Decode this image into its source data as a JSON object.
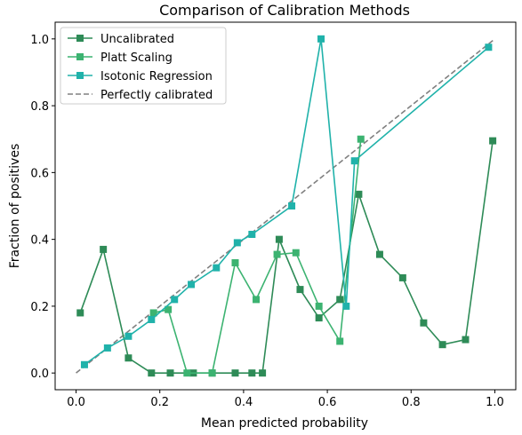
{
  "chart_data": {
    "type": "line",
    "title": "Comparison of Calibration Methods",
    "xlabel": "Mean predicted probability",
    "ylabel": "Fraction of positives",
    "xlim": [
      -0.05,
      1.05
    ],
    "ylim": [
      -0.05,
      1.05
    ],
    "xticks": [
      "0.0",
      "0.2",
      "0.4",
      "0.6",
      "0.8",
      "1.0"
    ],
    "yticks": [
      "0.0",
      "0.2",
      "0.4",
      "0.6",
      "0.8",
      "1.0"
    ],
    "grid": false,
    "legend_position": "top-left",
    "series": [
      {
        "name": "Uncalibrated",
        "color": "#2e8b57",
        "marker": "square",
        "x": [
          0.01,
          0.065,
          0.125,
          0.18,
          0.225,
          0.28,
          0.325,
          0.38,
          0.42,
          0.445,
          0.485,
          0.535,
          0.58,
          0.63,
          0.675,
          0.725,
          0.78,
          0.83,
          0.875,
          0.93,
          0.995
        ],
        "y": [
          0.18,
          0.37,
          0.045,
          0.0,
          0.0,
          0.0,
          0.0,
          0.0,
          0.0,
          0.0,
          0.4,
          0.25,
          0.165,
          0.22,
          0.535,
          0.355,
          0.285,
          0.15,
          0.085,
          0.1,
          0.695
        ]
      },
      {
        "name": "Platt Scaling",
        "color": "#3cb371",
        "marker": "square",
        "x": [
          0.185,
          0.22,
          0.265,
          0.325,
          0.38,
          0.43,
          0.48,
          0.525,
          0.58,
          0.63,
          0.68
        ],
        "y": [
          0.18,
          0.19,
          0.0,
          0.0,
          0.33,
          0.22,
          0.355,
          0.36,
          0.2,
          0.095,
          0.7
        ]
      },
      {
        "name": "Isotonic Regression",
        "color": "#20b2aa",
        "marker": "square",
        "x": [
          0.02,
          0.075,
          0.125,
          0.18,
          0.235,
          0.275,
          0.335,
          0.385,
          0.42,
          0.515,
          0.585,
          0.645,
          0.665,
          0.985
        ],
        "y": [
          0.025,
          0.075,
          0.11,
          0.16,
          0.22,
          0.265,
          0.315,
          0.39,
          0.415,
          0.5,
          1.0,
          0.2,
          0.635,
          0.975
        ]
      },
      {
        "name": "Perfectly calibrated",
        "color": "#808080",
        "dashed": true,
        "marker": "none",
        "x": [
          0,
          1
        ],
        "y": [
          0,
          1
        ]
      }
    ]
  }
}
